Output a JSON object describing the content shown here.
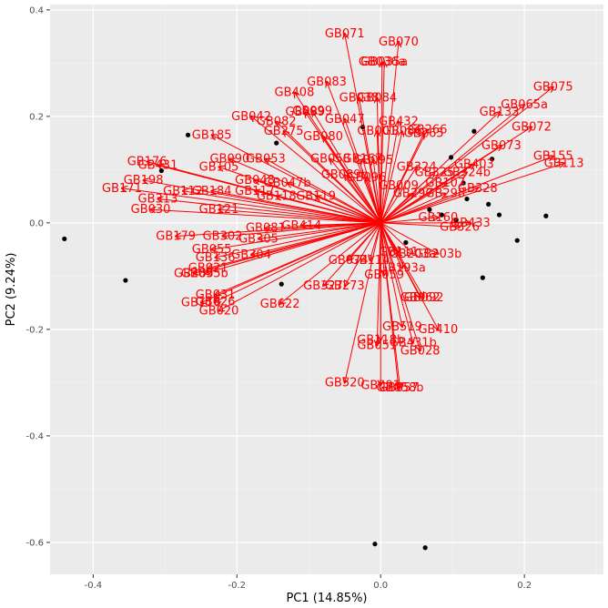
{
  "chart_data": {
    "type": "scatter",
    "subtype": "pca-biplot",
    "xlabel": "PC1 (14.85%)",
    "ylabel": "PC2 (9.24%)",
    "xlim": [
      -0.46,
      0.31
    ],
    "ylim": [
      -0.66,
      0.41
    ],
    "x_ticks": [
      -0.4,
      -0.2,
      0.0,
      0.2
    ],
    "x_tick_labels": [
      "-0.4",
      "-0.2",
      "0.0",
      "0.2"
    ],
    "y_ticks": [
      -0.6,
      -0.4,
      -0.2,
      0.0,
      0.2,
      0.4
    ],
    "y_tick_labels": [
      "-0.6",
      "-0.4",
      "-0.2",
      "0.0",
      "0.2",
      "0.4"
    ],
    "grid": true,
    "background": "#ebebeb",
    "point_color": "#000000",
    "arrow_color": "#ff0000",
    "points": [
      {
        "x": -0.44,
        "y": -0.03
      },
      {
        "x": -0.355,
        "y": -0.108
      },
      {
        "x": -0.305,
        "y": 0.098
      },
      {
        "x": -0.268,
        "y": 0.165
      },
      {
        "x": -0.145,
        "y": 0.15
      },
      {
        "x": -0.138,
        "y": -0.115
      },
      {
        "x": -0.025,
        "y": 0.18
      },
      {
        "x": 0.035,
        "y": -0.037
      },
      {
        "x": 0.068,
        "y": 0.025
      },
      {
        "x": 0.085,
        "y": 0.015
      },
      {
        "x": 0.098,
        "y": 0.123
      },
      {
        "x": 0.105,
        "y": 0.005
      },
      {
        "x": 0.115,
        "y": 0.075
      },
      {
        "x": 0.12,
        "y": 0.045
      },
      {
        "x": 0.13,
        "y": 0.172
      },
      {
        "x": 0.142,
        "y": -0.103
      },
      {
        "x": 0.15,
        "y": 0.035
      },
      {
        "x": 0.155,
        "y": 0.12
      },
      {
        "x": 0.165,
        "y": 0.015
      },
      {
        "x": 0.19,
        "y": -0.033
      },
      {
        "x": 0.23,
        "y": 0.013
      },
      {
        "x": -0.008,
        "y": -0.603
      },
      {
        "x": 0.062,
        "y": -0.61
      }
    ],
    "loadings": [
      {
        "label": "GB071",
        "x": -0.05,
        "y": 0.355
      },
      {
        "label": "GB070",
        "x": 0.025,
        "y": 0.34
      },
      {
        "label": "GB035a",
        "x": 0.005,
        "y": 0.302
      },
      {
        "label": "GB036a",
        "x": 0.002,
        "y": 0.302
      },
      {
        "label": "GB083",
        "x": -0.075,
        "y": 0.265
      },
      {
        "label": "GB408",
        "x": -0.12,
        "y": 0.245
      },
      {
        "label": "GB038",
        "x": -0.03,
        "y": 0.235
      },
      {
        "label": "GB084",
        "x": -0.005,
        "y": 0.235
      },
      {
        "label": "GB099",
        "x": -0.095,
        "y": 0.21
      },
      {
        "label": "GB089",
        "x": -0.105,
        "y": 0.208
      },
      {
        "label": "GB075",
        "x": 0.24,
        "y": 0.255
      },
      {
        "label": "GB065a",
        "x": 0.2,
        "y": 0.222
      },
      {
        "label": "GB133",
        "x": 0.165,
        "y": 0.208
      },
      {
        "label": "GB042",
        "x": -0.18,
        "y": 0.2
      },
      {
        "label": "GB082",
        "x": -0.145,
        "y": 0.19
      },
      {
        "label": "GB047",
        "x": -0.05,
        "y": 0.195
      },
      {
        "label": "GB432",
        "x": 0.025,
        "y": 0.19
      },
      {
        "label": "GB072",
        "x": 0.21,
        "y": 0.18
      },
      {
        "label": "GB275",
        "x": -0.135,
        "y": 0.172
      },
      {
        "label": "GB001",
        "x": -0.005,
        "y": 0.172
      },
      {
        "label": "GB080",
        "x": -0.08,
        "y": 0.162
      },
      {
        "label": "GB086",
        "x": 0.03,
        "y": 0.172
      },
      {
        "label": "GB265",
        "x": 0.06,
        "y": 0.168
      },
      {
        "label": "GB266",
        "x": 0.065,
        "y": 0.175
      },
      {
        "label": "GB185",
        "x": -0.235,
        "y": 0.165
      },
      {
        "label": "GB073",
        "x": 0.168,
        "y": 0.145
      },
      {
        "label": "GB155",
        "x": 0.24,
        "y": 0.125
      },
      {
        "label": "GB113",
        "x": 0.255,
        "y": 0.112
      },
      {
        "label": "GB176",
        "x": -0.325,
        "y": 0.115
      },
      {
        "label": "GB431",
        "x": -0.31,
        "y": 0.108
      },
      {
        "label": "GB090",
        "x": -0.21,
        "y": 0.12
      },
      {
        "label": "GB053",
        "x": -0.16,
        "y": 0.12
      },
      {
        "label": "GB058",
        "x": -0.07,
        "y": 0.12
      },
      {
        "label": "GB167",
        "x": -0.025,
        "y": 0.12
      },
      {
        "label": "GB095",
        "x": -0.01,
        "y": 0.118
      },
      {
        "label": "GB324",
        "x": 0.05,
        "y": 0.105
      },
      {
        "label": "GB325",
        "x": 0.075,
        "y": 0.095
      },
      {
        "label": "GB403",
        "x": 0.13,
        "y": 0.11
      },
      {
        "label": "GB324b",
        "x": 0.12,
        "y": 0.095
      },
      {
        "label": "GB105",
        "x": -0.225,
        "y": 0.105
      },
      {
        "label": "GB198",
        "x": -0.33,
        "y": 0.08
      },
      {
        "label": "GB171",
        "x": -0.36,
        "y": 0.065
      },
      {
        "label": "GB089b",
        "x": -0.05,
        "y": 0.09
      },
      {
        "label": "GB096",
        "x": -0.02,
        "y": 0.085
      },
      {
        "label": "GB107",
        "x": 0.09,
        "y": 0.075
      },
      {
        "label": "GB328",
        "x": 0.135,
        "y": 0.065
      },
      {
        "label": "GB048",
        "x": -0.175,
        "y": 0.08
      },
      {
        "label": "GB047b",
        "x": -0.13,
        "y": 0.075
      },
      {
        "label": "GB009",
        "x": 0.025,
        "y": 0.07
      },
      {
        "label": "GB112",
        "x": -0.275,
        "y": 0.06
      },
      {
        "label": "GB184",
        "x": -0.235,
        "y": 0.06
      },
      {
        "label": "GB313",
        "x": -0.31,
        "y": 0.045
      },
      {
        "label": "GB117",
        "x": -0.175,
        "y": 0.06
      },
      {
        "label": "GB118",
        "x": -0.145,
        "y": 0.05
      },
      {
        "label": "GB119",
        "x": -0.09,
        "y": 0.05
      },
      {
        "label": "GB297",
        "x": 0.045,
        "y": 0.055
      },
      {
        "label": "GB298",
        "x": 0.09,
        "y": 0.055
      },
      {
        "label": "GB030",
        "x": -0.32,
        "y": 0.025
      },
      {
        "label": "GB121",
        "x": -0.225,
        "y": 0.025
      },
      {
        "label": "GB160",
        "x": 0.08,
        "y": 0.01
      },
      {
        "label": "GB433",
        "x": 0.125,
        "y": 0.0
      },
      {
        "label": "GB326",
        "x": 0.11,
        "y": -0.008
      },
      {
        "label": "GB179",
        "x": -0.285,
        "y": -0.025
      },
      {
        "label": "GB302",
        "x": -0.22,
        "y": -0.025
      },
      {
        "label": "GB081",
        "x": -0.16,
        "y": -0.01
      },
      {
        "label": "GB414",
        "x": -0.11,
        "y": -0.005
      },
      {
        "label": "GB305",
        "x": -0.17,
        "y": -0.03
      },
      {
        "label": "GB055",
        "x": -0.235,
        "y": -0.05
      },
      {
        "label": "GB304",
        "x": -0.18,
        "y": -0.06
      },
      {
        "label": "GB136",
        "x": -0.23,
        "y": -0.065
      },
      {
        "label": "GB021",
        "x": -0.24,
        "y": -0.085
      },
      {
        "label": "GB111",
        "x": 0.025,
        "y": -0.055
      },
      {
        "label": "GB203a",
        "x": 0.045,
        "y": -0.058
      },
      {
        "label": "GB203b",
        "x": 0.08,
        "y": -0.058
      },
      {
        "label": "GB074",
        "x": -0.045,
        "y": -0.07
      },
      {
        "label": "GB114",
        "x": -0.015,
        "y": -0.07
      },
      {
        "label": "GB285",
        "x": -0.26,
        "y": -0.095
      },
      {
        "label": "GB095b",
        "x": -0.245,
        "y": -0.095
      },
      {
        "label": "GB193a",
        "x": 0.03,
        "y": -0.085
      },
      {
        "label": "GB059",
        "x": 0.005,
        "y": -0.098
      },
      {
        "label": "GB031",
        "x": -0.23,
        "y": -0.135
      },
      {
        "label": "GB026",
        "x": -0.23,
        "y": -0.148
      },
      {
        "label": "GB116",
        "x": -0.25,
        "y": -0.15
      },
      {
        "label": "GB020",
        "x": -0.225,
        "y": -0.165
      },
      {
        "label": "GB622",
        "x": -0.14,
        "y": -0.152
      },
      {
        "label": "GB327",
        "x": -0.08,
        "y": -0.118
      },
      {
        "label": "GB273",
        "x": -0.05,
        "y": -0.118
      },
      {
        "label": "GB062",
        "x": 0.055,
        "y": -0.14
      },
      {
        "label": "GB092",
        "x": 0.06,
        "y": -0.14
      },
      {
        "label": "GB410",
        "x": 0.08,
        "y": -0.2
      },
      {
        "label": "GB519",
        "x": 0.03,
        "y": -0.195
      },
      {
        "label": "GB118b",
        "x": 0.0,
        "y": -0.22
      },
      {
        "label": "GB051",
        "x": -0.005,
        "y": -0.23
      },
      {
        "label": "GB431b",
        "x": 0.045,
        "y": -0.225
      },
      {
        "label": "GB028",
        "x": 0.055,
        "y": -0.24
      },
      {
        "label": "GB520",
        "x": -0.05,
        "y": -0.3
      },
      {
        "label": "GB091",
        "x": 0.0,
        "y": -0.305
      },
      {
        "label": "GB057",
        "x": 0.025,
        "y": -0.31
      },
      {
        "label": "GB058b",
        "x": 0.027,
        "y": -0.31
      }
    ]
  }
}
